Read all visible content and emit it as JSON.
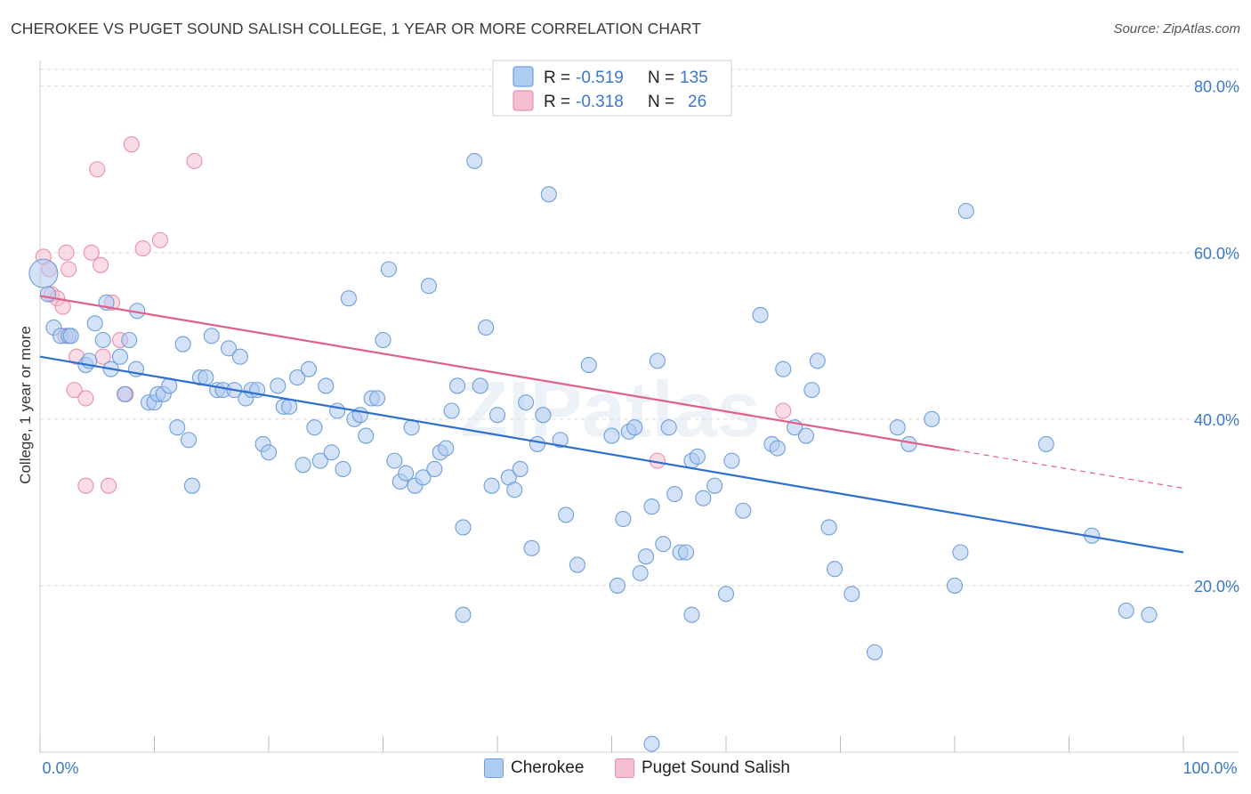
{
  "header": {
    "title": "CHEROKEE VS PUGET SOUND SALISH COLLEGE, 1 YEAR OR MORE CORRELATION CHART",
    "source": "Source: ZipAtlas.com"
  },
  "watermark": "ZIPatlas",
  "legend_top": {
    "rows": [
      {
        "r_label": "R =",
        "r_value": "-0.519",
        "n_label": "N =",
        "n_value": "135"
      },
      {
        "r_label": "R =",
        "r_value": "-0.318",
        "n_label": "N =",
        "n_value": "26"
      }
    ]
  },
  "legend_bottom": {
    "items": [
      {
        "label": "Cherokee"
      },
      {
        "label": "Puget Sound Salish"
      }
    ]
  },
  "colors": {
    "blue_fill": "#aecbf0",
    "blue_stroke": "#6e9fdb",
    "blue_line": "#2e6fcf",
    "pink_fill": "#f6bfd1",
    "pink_stroke": "#e98fae",
    "pink_line": "#e0608a",
    "tick_text": "#3b78c9",
    "grid": "#d9d9d9"
  },
  "chart_data": {
    "type": "scatter",
    "title": "CHEROKEE VS PUGET SOUND SALISH COLLEGE, 1 YEAR OR MORE CORRELATION CHART",
    "xlabel": "",
    "ylabel": "College, 1 year or more",
    "xlim": [
      0,
      100
    ],
    "ylim": [
      0,
      82
    ],
    "x_tick_labels": [
      "0.0%",
      "100.0%"
    ],
    "y_ticks": [
      20,
      40,
      60,
      80
    ],
    "y_tick_labels": [
      "20.0%",
      "40.0%",
      "60.0%",
      "80.0%"
    ],
    "grid": "horizontal dashed",
    "legend_position": "top-center",
    "series": [
      {
        "name": "Cherokee",
        "r": -0.519,
        "n": 135,
        "trend": {
          "x0": 0,
          "y0": 47.5,
          "x1": 100,
          "y1": 24.0
        },
        "points": [
          [
            0.3,
            57.5
          ],
          [
            0.7,
            55.0
          ],
          [
            1.2,
            51.0
          ],
          [
            1.8,
            50.0
          ],
          [
            2.5,
            50.0
          ],
          [
            2.7,
            50.0
          ],
          [
            4.0,
            46.5
          ],
          [
            4.3,
            47.0
          ],
          [
            4.8,
            51.5
          ],
          [
            5.5,
            49.5
          ],
          [
            5.8,
            54.0
          ],
          [
            6.2,
            46.0
          ],
          [
            7.0,
            47.5
          ],
          [
            7.4,
            43.0
          ],
          [
            7.8,
            49.5
          ],
          [
            8.4,
            46.0
          ],
          [
            8.5,
            53.0
          ],
          [
            9.5,
            42.0
          ],
          [
            10.0,
            42.0
          ],
          [
            10.3,
            43.0
          ],
          [
            10.8,
            43.0
          ],
          [
            11.3,
            44.0
          ],
          [
            12.0,
            39.0
          ],
          [
            12.5,
            49.0
          ],
          [
            13.0,
            37.5
          ],
          [
            13.3,
            32.0
          ],
          [
            14.0,
            45.0
          ],
          [
            14.5,
            45.0
          ],
          [
            15.0,
            50.0
          ],
          [
            15.5,
            43.5
          ],
          [
            16.0,
            43.5
          ],
          [
            16.5,
            48.5
          ],
          [
            17.0,
            43.5
          ],
          [
            17.5,
            47.5
          ],
          [
            18.0,
            42.5
          ],
          [
            18.5,
            43.5
          ],
          [
            19.0,
            43.5
          ],
          [
            19.5,
            37.0
          ],
          [
            20.0,
            36.0
          ],
          [
            20.8,
            44.0
          ],
          [
            21.3,
            41.5
          ],
          [
            21.8,
            41.5
          ],
          [
            22.5,
            45.0
          ],
          [
            23.0,
            34.5
          ],
          [
            23.5,
            46.0
          ],
          [
            24.0,
            39.0
          ],
          [
            24.5,
            35.0
          ],
          [
            25.0,
            44.0
          ],
          [
            25.5,
            36.0
          ],
          [
            26.0,
            41.0
          ],
          [
            26.5,
            34.0
          ],
          [
            27.0,
            54.5
          ],
          [
            27.5,
            40.0
          ],
          [
            28.0,
            40.5
          ],
          [
            28.5,
            38.0
          ],
          [
            29.0,
            42.5
          ],
          [
            29.5,
            42.5
          ],
          [
            30.0,
            49.5
          ],
          [
            30.5,
            58.0
          ],
          [
            31.0,
            35.0
          ],
          [
            31.5,
            32.5
          ],
          [
            32.0,
            33.5
          ],
          [
            32.5,
            39.0
          ],
          [
            32.8,
            32.0
          ],
          [
            33.5,
            33.0
          ],
          [
            34.0,
            56.0
          ],
          [
            34.5,
            34.0
          ],
          [
            35.0,
            36.0
          ],
          [
            35.5,
            36.5
          ],
          [
            36.0,
            41.0
          ],
          [
            36.5,
            44.0
          ],
          [
            37.0,
            27.0
          ],
          [
            38.0,
            71.0
          ],
          [
            38.5,
            44.0
          ],
          [
            39.0,
            51.0
          ],
          [
            39.5,
            32.0
          ],
          [
            40.0,
            40.5
          ],
          [
            41.0,
            33.0
          ],
          [
            41.5,
            31.5
          ],
          [
            42.0,
            34.0
          ],
          [
            42.5,
            42.0
          ],
          [
            43.0,
            24.5
          ],
          [
            43.5,
            37.0
          ],
          [
            44.0,
            40.5
          ],
          [
            44.5,
            67.0
          ],
          [
            45.5,
            37.5
          ],
          [
            46.0,
            28.5
          ],
          [
            47.0,
            22.5
          ],
          [
            48.0,
            46.5
          ],
          [
            50.0,
            38.0
          ],
          [
            50.5,
            20.0
          ],
          [
            51.0,
            28.0
          ],
          [
            51.5,
            38.5
          ],
          [
            52.0,
            39.0
          ],
          [
            52.5,
            21.5
          ],
          [
            53.0,
            23.5
          ],
          [
            53.5,
            29.5
          ],
          [
            54.0,
            47.0
          ],
          [
            54.5,
            25.0
          ],
          [
            55.0,
            39.0
          ],
          [
            55.5,
            31.0
          ],
          [
            56.0,
            24.0
          ],
          [
            57.0,
            35.0
          ],
          [
            57.5,
            35.5
          ],
          [
            58.0,
            30.5
          ],
          [
            59.0,
            32.0
          ],
          [
            60.0,
            19.0
          ],
          [
            60.5,
            35.0
          ],
          [
            61.5,
            29.0
          ],
          [
            63.0,
            52.5
          ],
          [
            64.0,
            37.0
          ],
          [
            64.5,
            36.5
          ],
          [
            65.0,
            46.0
          ],
          [
            66.0,
            39.0
          ],
          [
            67.0,
            38.0
          ],
          [
            67.5,
            43.5
          ],
          [
            68.0,
            47.0
          ],
          [
            69.0,
            27.0
          ],
          [
            69.5,
            22.0
          ],
          [
            71.0,
            19.0
          ],
          [
            73.0,
            12.0
          ],
          [
            75.0,
            39.0
          ],
          [
            76.0,
            37.0
          ],
          [
            78.0,
            40.0
          ],
          [
            80.0,
            20.0
          ],
          [
            80.5,
            24.0
          ],
          [
            81.0,
            65.0
          ],
          [
            88.0,
            37.0
          ],
          [
            92.0,
            26.0
          ],
          [
            95.0,
            17.0
          ],
          [
            97.0,
            16.5
          ],
          [
            57.0,
            16.5
          ],
          [
            37.0,
            16.5
          ],
          [
            53.5,
            1.0
          ],
          [
            56.5,
            24.0
          ]
        ]
      },
      {
        "name": "Puget Sound Salish",
        "r": -0.318,
        "n": 26,
        "trend": {
          "x0": 0,
          "y0": 54.8,
          "x1": 80,
          "y1": 36.3
        },
        "trend_extension": {
          "x0": 80,
          "y0": 36.3,
          "x1": 100,
          "y1": 31.7
        },
        "points": [
          [
            0.3,
            59.5
          ],
          [
            0.8,
            58.0
          ],
          [
            1.0,
            55.0
          ],
          [
            1.5,
            54.5
          ],
          [
            2.0,
            53.5
          ],
          [
            2.2,
            50.0
          ],
          [
            2.3,
            60.0
          ],
          [
            2.5,
            58.0
          ],
          [
            3.0,
            43.5
          ],
          [
            3.2,
            47.5
          ],
          [
            4.0,
            42.5
          ],
          [
            4.0,
            32.0
          ],
          [
            4.5,
            60.0
          ],
          [
            5.0,
            70.0
          ],
          [
            5.3,
            58.5
          ],
          [
            5.5,
            47.5
          ],
          [
            6.0,
            32.0
          ],
          [
            6.3,
            54.0
          ],
          [
            7.0,
            49.5
          ],
          [
            7.5,
            43.0
          ],
          [
            8.0,
            73.0
          ],
          [
            9.0,
            60.5
          ],
          [
            10.5,
            61.5
          ],
          [
            13.5,
            71.0
          ],
          [
            54.0,
            35.0
          ],
          [
            65.0,
            41.0
          ]
        ]
      }
    ]
  }
}
